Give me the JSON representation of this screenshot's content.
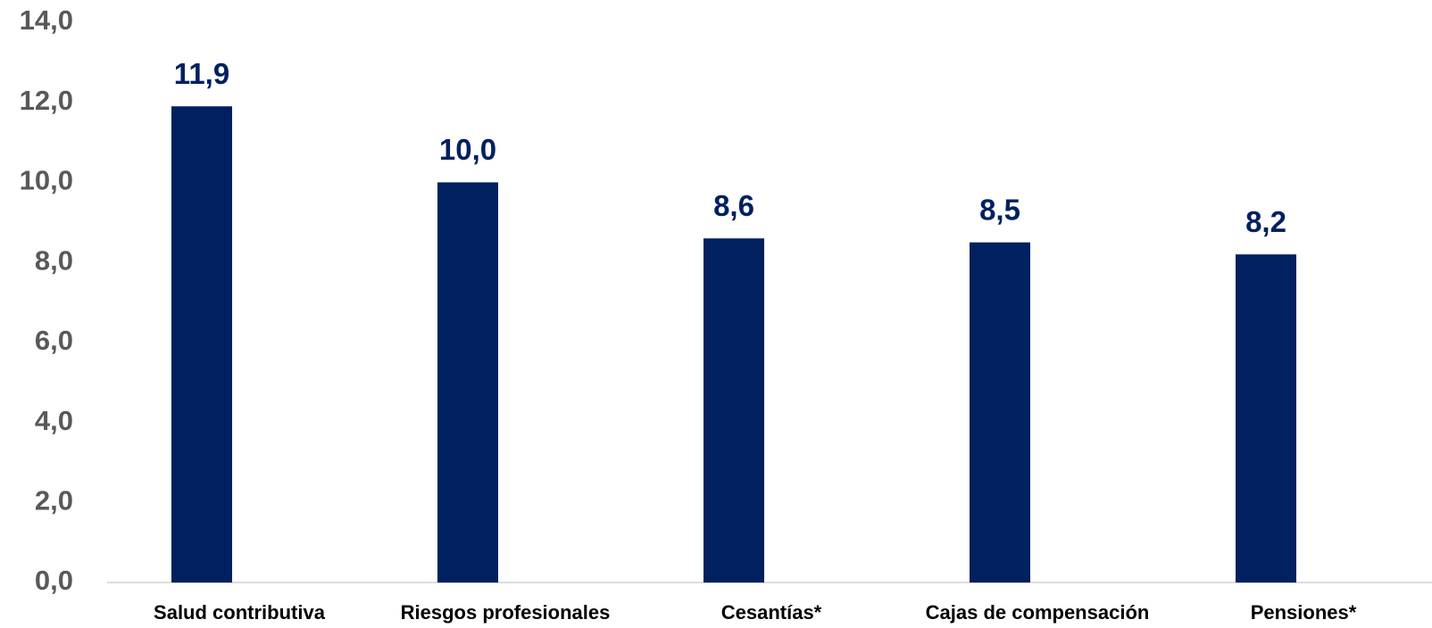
{
  "chart_data": {
    "type": "bar",
    "categories": [
      "Salud contributiva",
      "Riesgos profesionales",
      "Cesantías*",
      "Cajas de compensación",
      "Pensiones*"
    ],
    "values": [
      11.9,
      10.0,
      8.6,
      8.5,
      8.2
    ],
    "value_labels": [
      "11,9",
      "10,0",
      "8,6",
      "8,5",
      "8,2"
    ],
    "color": "#00205f",
    "ylim": [
      0,
      14
    ],
    "yticks": [
      {
        "value": 0,
        "label": "0,0"
      },
      {
        "value": 2,
        "label": "2,0"
      },
      {
        "value": 4,
        "label": "4,0"
      },
      {
        "value": 6,
        "label": "6,0"
      },
      {
        "value": 8,
        "label": "8,0"
      },
      {
        "value": 10,
        "label": "10,0"
      },
      {
        "value": 12,
        "label": "12,0"
      },
      {
        "value": 14,
        "label": "14,0"
      }
    ],
    "grid": false
  }
}
